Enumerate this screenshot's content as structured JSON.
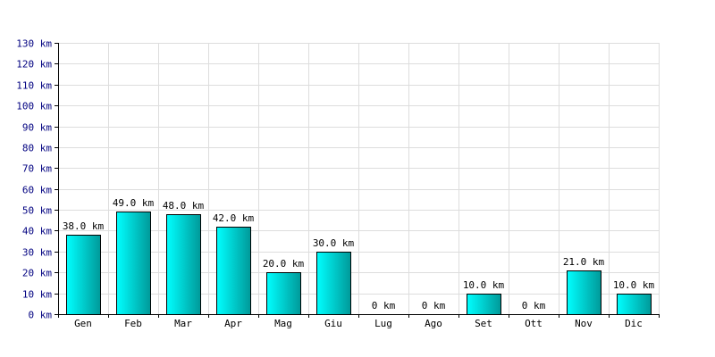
{
  "chart_data": {
    "type": "bar",
    "title": "",
    "xlabel": "",
    "ylabel": "",
    "unit": "km",
    "categories": [
      "Gen",
      "Feb",
      "Mar",
      "Apr",
      "Mag",
      "Giu",
      "Lug",
      "Ago",
      "Set",
      "Ott",
      "Nov",
      "Dic"
    ],
    "values": [
      38.0,
      49.0,
      48.0,
      42.0,
      20.0,
      30.0,
      0,
      0,
      10.0,
      0,
      21.0,
      10.0
    ],
    "data_labels": [
      "38.0 km",
      "49.0 km",
      "48.0 km",
      "42.0 km",
      "20.0 km",
      "30.0 km",
      "0 km",
      "0 km",
      "10.0 km",
      "0 km",
      "21.0 km",
      "10.0 km"
    ],
    "ylim": [
      0,
      130
    ],
    "yticks": [
      0,
      10,
      20,
      30,
      40,
      50,
      60,
      70,
      80,
      90,
      100,
      110,
      120,
      130
    ],
    "ytick_labels": [
      "0 km",
      "10 km",
      "20 km",
      "30 km",
      "40 km",
      "50 km",
      "60 km",
      "70 km",
      "80 km",
      "90 km",
      "100 km",
      "110 km",
      "120 km",
      "130 km"
    ],
    "grid": true,
    "colors": {
      "bar_light": "#00ffff",
      "bar_dark": "#009999",
      "bar_stroke": "#000000",
      "grid": "#dddddd",
      "axis": "#000000",
      "ytick_text": "#000080"
    }
  }
}
